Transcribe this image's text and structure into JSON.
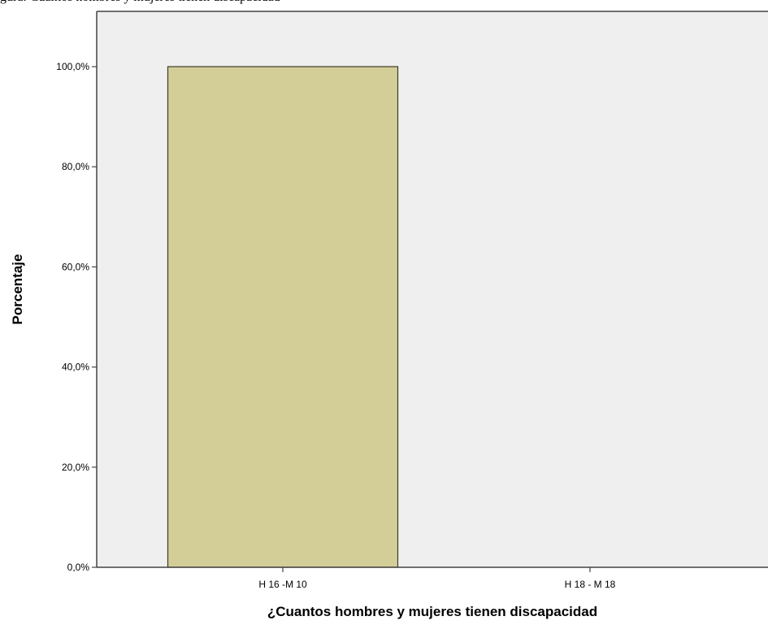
{
  "figure": {
    "title": "gura: Cuantos hombres y mujeres tienen discapacidad"
  },
  "chart_data": {
    "type": "bar",
    "categories": [
      "H 16 -M 10",
      "H 18 - M 18"
    ],
    "values": [
      100,
      0
    ],
    "xlabel": "¿Cuantos hombres y mujeres tienen discapacidad",
    "ylabel": "Porcentaje",
    "ylim": [
      0,
      100
    ],
    "yticks": [
      0,
      20,
      40,
      60,
      80,
      100
    ],
    "ytick_labels": [
      "0,0%",
      "20,0%",
      "40,0%",
      "60,0%",
      "80,0%",
      "100,0%"
    ],
    "grid": false,
    "legend": "none",
    "colors": {
      "bar": "#d3cd98",
      "bar_edge": "#3c3c28",
      "plot_background": "#efefef",
      "axis": "#444444"
    }
  }
}
